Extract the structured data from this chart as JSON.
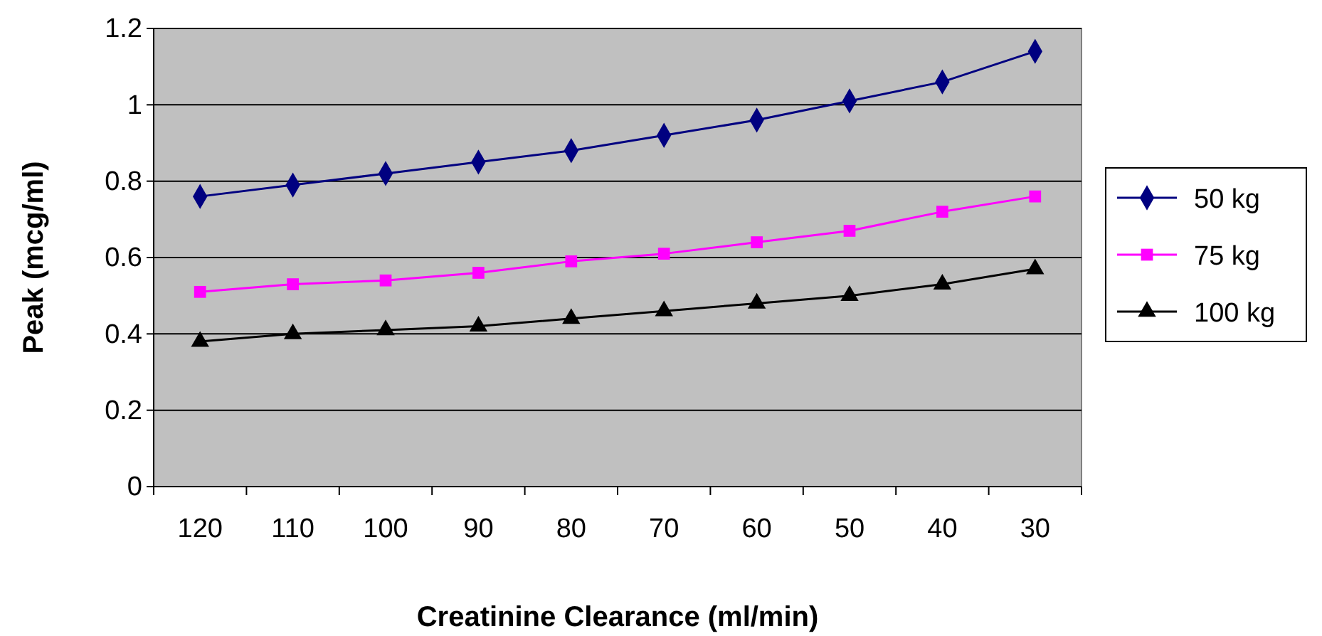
{
  "chart_data": {
    "type": "line",
    "xlabel": "Creatinine Clearance (ml/min)",
    "ylabel": "Peak (mcg/ml)",
    "categories": [
      "120",
      "110",
      "100",
      "90",
      "80",
      "70",
      "60",
      "50",
      "40",
      "30"
    ],
    "ylim": [
      0,
      1.2
    ],
    "yticks": [
      0,
      0.2,
      0.4,
      0.6,
      0.8,
      1,
      1.2
    ],
    "grid": "y",
    "legend": "right",
    "series": [
      {
        "name": "50 kg",
        "color": "#000080",
        "marker": "diamond",
        "values": [
          0.76,
          0.79,
          0.82,
          0.85,
          0.88,
          0.92,
          0.96,
          1.01,
          1.06,
          1.14
        ]
      },
      {
        "name": "75 kg",
        "color": "#ff00ff",
        "marker": "square",
        "values": [
          0.51,
          0.53,
          0.54,
          0.56,
          0.59,
          0.61,
          0.64,
          0.67,
          0.72,
          0.76
        ]
      },
      {
        "name": "100 kg",
        "color": "#000000",
        "marker": "triangle",
        "values": [
          0.38,
          0.4,
          0.41,
          0.42,
          0.44,
          0.46,
          0.48,
          0.5,
          0.53,
          0.57
        ]
      }
    ]
  }
}
